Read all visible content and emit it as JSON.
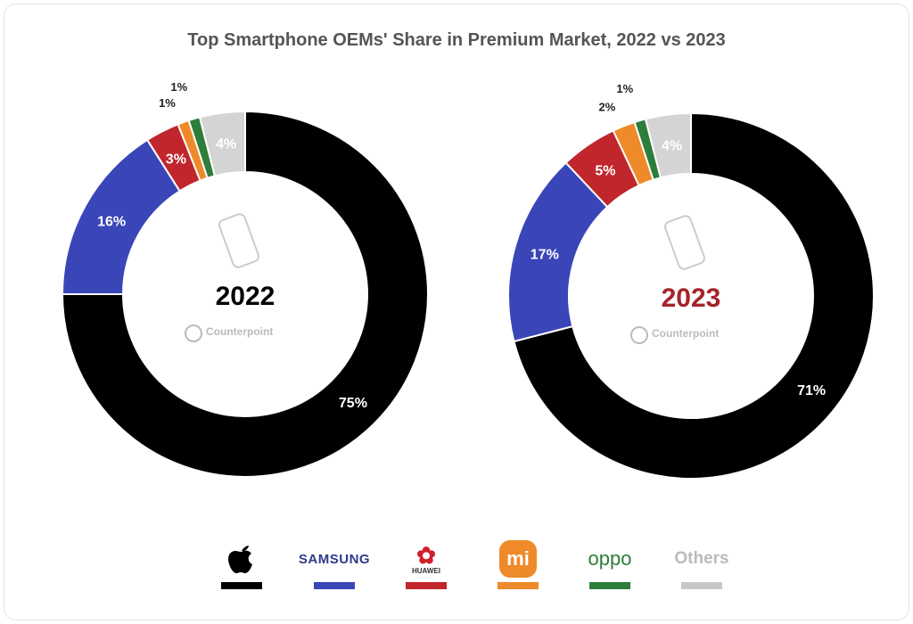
{
  "chart_data": [
    {
      "type": "donut",
      "title": "Top Smartphone OEMs' Share in Premium Market, 2022 vs 2023",
      "center_label": "2022",
      "center_label_color": "#000000",
      "watermark": "Counterpoint",
      "categories": [
        "Apple",
        "Samsung",
        "Huawei",
        "Xiaomi",
        "OPPO",
        "Others"
      ],
      "values": [
        75,
        16,
        3,
        1,
        1,
        4
      ],
      "labels": [
        "75%",
        "16%",
        "3%",
        "1%",
        "1%",
        "4%"
      ]
    },
    {
      "type": "donut",
      "center_label": "2023",
      "center_label_color": "#a3242a",
      "watermark": "Counterpoint",
      "categories": [
        "Apple",
        "Samsung",
        "Huawei",
        "Xiaomi",
        "OPPO",
        "Others"
      ],
      "values": [
        71,
        17,
        5,
        2,
        1,
        4
      ],
      "labels": [
        "71%",
        "17%",
        "5%",
        "2%",
        "1%",
        "4%"
      ]
    }
  ],
  "title": "Top Smartphone OEMs' Share in Premium Market, 2022 vs 2023",
  "colors": [
    "#000000",
    "#3a45b8",
    "#c0262c",
    "#ee8a2a",
    "#2e7d3a",
    "#d4d4d4"
  ],
  "legend": [
    {
      "brand": "Apple",
      "logo": "apple-logo",
      "text": ""
    },
    {
      "brand": "Samsung",
      "text": "SAMSUNG"
    },
    {
      "brand": "Huawei",
      "text": "HUAWEI"
    },
    {
      "brand": "Xiaomi",
      "text": "mi"
    },
    {
      "brand": "OPPO",
      "text": "oppo"
    },
    {
      "brand": "Others",
      "text": "Others"
    }
  ]
}
